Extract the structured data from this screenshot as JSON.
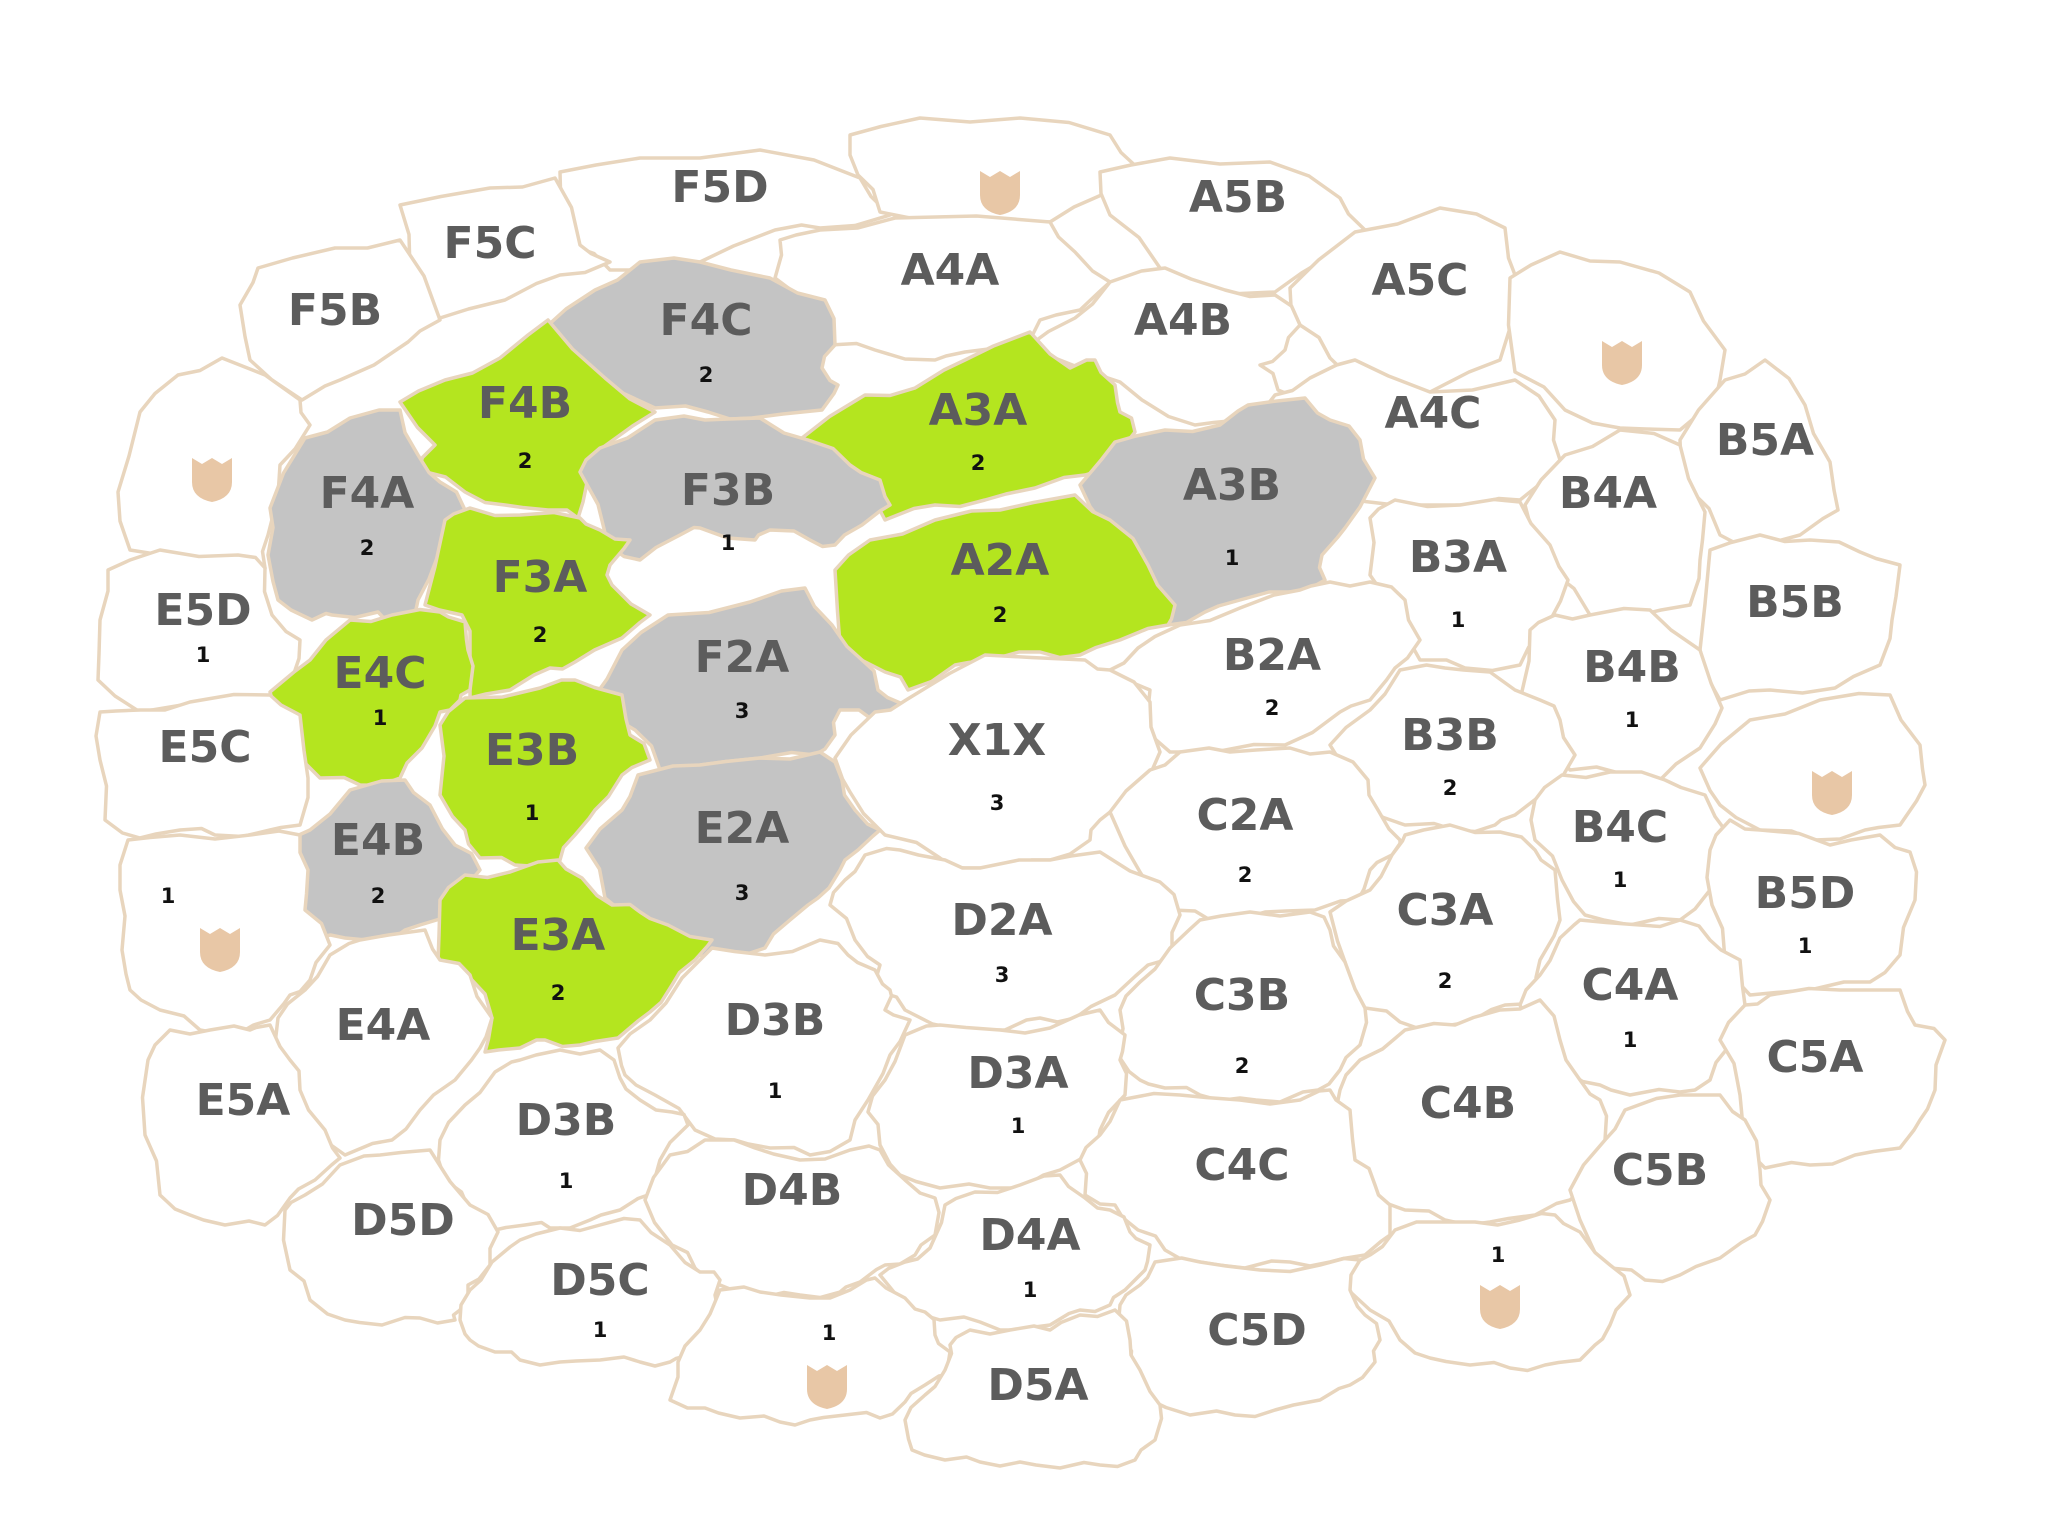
{
  "colors": {
    "background": "#ffffff",
    "border": "#e8d5bd",
    "white_region": "#ffffff",
    "gray_region": "#c4c4c4",
    "green_region": "#b4e51f",
    "label": "#5c5c5c",
    "number": "#111111",
    "shield": "#e8c7a6"
  },
  "regions": [
    {
      "id": "F5D",
      "label": "F5D",
      "count": "",
      "state": "white",
      "shield": false
    },
    {
      "id": "shield-top",
      "label": "",
      "count": "",
      "state": "white",
      "shield": true
    },
    {
      "id": "A5B",
      "label": "A5B",
      "count": "",
      "state": "white",
      "shield": false
    },
    {
      "id": "F5C",
      "label": "F5C",
      "count": "",
      "state": "white",
      "shield": false
    },
    {
      "id": "F5B",
      "label": "F5B",
      "count": "",
      "state": "white",
      "shield": false
    },
    {
      "id": "A4A",
      "label": "A4A",
      "count": "",
      "state": "white",
      "shield": false
    },
    {
      "id": "A5C",
      "label": "A5C",
      "count": "",
      "state": "white",
      "shield": false
    },
    {
      "id": "shield-ne",
      "label": "",
      "count": "",
      "state": "white",
      "shield": true
    },
    {
      "id": "F4C",
      "label": "F4C",
      "count": "2",
      "state": "gray",
      "shield": false
    },
    {
      "id": "A4B",
      "label": "A4B",
      "count": "",
      "state": "white",
      "shield": false
    },
    {
      "id": "shield-w",
      "label": "",
      "count": "",
      "state": "white",
      "shield": true
    },
    {
      "id": "F4B",
      "label": "F4B",
      "count": "2",
      "state": "green",
      "shield": false
    },
    {
      "id": "A3A",
      "label": "A3A",
      "count": "2",
      "state": "green",
      "shield": false
    },
    {
      "id": "A4C",
      "label": "A4C",
      "count": "",
      "state": "white",
      "shield": false
    },
    {
      "id": "B5A",
      "label": "B5A",
      "count": "",
      "state": "white",
      "shield": false
    },
    {
      "id": "F4A",
      "label": "F4A",
      "count": "2",
      "state": "gray",
      "shield": false
    },
    {
      "id": "F3B",
      "label": "F3B",
      "count": "1",
      "state": "gray",
      "shield": false
    },
    {
      "id": "A3B",
      "label": "A3B",
      "count": "1",
      "state": "gray",
      "shield": false
    },
    {
      "id": "B4A",
      "label": "B4A",
      "count": "",
      "state": "white",
      "shield": false
    },
    {
      "id": "F3A",
      "label": "F3A",
      "count": "2",
      "state": "green",
      "shield": false
    },
    {
      "id": "A2A",
      "label": "A2A",
      "count": "2",
      "state": "green",
      "shield": false
    },
    {
      "id": "B3A",
      "label": "B3A",
      "count": "1",
      "state": "white",
      "shield": false
    },
    {
      "id": "E5D",
      "label": "E5D",
      "count": "1",
      "state": "white",
      "shield": false
    },
    {
      "id": "B5B",
      "label": "B5B",
      "count": "",
      "state": "white",
      "shield": false
    },
    {
      "id": "E4C",
      "label": "E4C",
      "count": "1",
      "state": "green",
      "shield": false
    },
    {
      "id": "F2A",
      "label": "F2A",
      "count": "3",
      "state": "gray",
      "shield": false
    },
    {
      "id": "B2A",
      "label": "B2A",
      "count": "2",
      "state": "white",
      "shield": false
    },
    {
      "id": "B4B",
      "label": "B4B",
      "count": "1",
      "state": "white",
      "shield": false
    },
    {
      "id": "E5C",
      "label": "E5C",
      "count": "",
      "state": "white",
      "shield": false
    },
    {
      "id": "E3B",
      "label": "E3B",
      "count": "1",
      "state": "green",
      "shield": false
    },
    {
      "id": "X1X",
      "label": "X1X",
      "count": "3",
      "state": "white",
      "shield": false
    },
    {
      "id": "B3B",
      "label": "B3B",
      "count": "2",
      "state": "white",
      "shield": false
    },
    {
      "id": "shield-e",
      "label": "",
      "count": "",
      "state": "white",
      "shield": true
    },
    {
      "id": "E2A",
      "label": "E2A",
      "count": "3",
      "state": "gray",
      "shield": false
    },
    {
      "id": "C2A",
      "label": "C2A",
      "count": "2",
      "state": "white",
      "shield": false
    },
    {
      "id": "B4C",
      "label": "B4C",
      "count": "1",
      "state": "white",
      "shield": false
    },
    {
      "id": "E4B",
      "label": "E4B",
      "count": "2",
      "state": "gray",
      "shield": false
    },
    {
      "id": "shield-sw",
      "label": "",
      "count": "1",
      "state": "white",
      "shield": true
    },
    {
      "id": "B5D",
      "label": "B5D",
      "count": "1",
      "state": "white",
      "shield": false
    },
    {
      "id": "C3A",
      "label": "C3A",
      "count": "2",
      "state": "white",
      "shield": false
    },
    {
      "id": "D2A",
      "label": "D2A",
      "count": "3",
      "state": "white",
      "shield": false
    },
    {
      "id": "E3A",
      "label": "E3A",
      "count": "2",
      "state": "green",
      "shield": false
    },
    {
      "id": "C4A",
      "label": "C4A",
      "count": "1",
      "state": "white",
      "shield": false
    },
    {
      "id": "C3B",
      "label": "C3B",
      "count": "2",
      "state": "white",
      "shield": false
    },
    {
      "id": "E4A",
      "label": "E4A",
      "count": "",
      "state": "white",
      "shield": false
    },
    {
      "id": "D3B-upper",
      "label": "D3B",
      "count": "1",
      "state": "white",
      "shield": false
    },
    {
      "id": "C5A",
      "label": "C5A",
      "count": "",
      "state": "white",
      "shield": false
    },
    {
      "id": "D3A",
      "label": "D3A",
      "count": "1",
      "state": "white",
      "shield": false
    },
    {
      "id": "E5A",
      "label": "E5A",
      "count": "",
      "state": "white",
      "shield": false
    },
    {
      "id": "C4B",
      "label": "C4B",
      "count": "",
      "state": "white",
      "shield": false
    },
    {
      "id": "D3B-lower",
      "label": "D3B",
      "count": "1",
      "state": "white",
      "shield": false
    },
    {
      "id": "C4C",
      "label": "C4C",
      "count": "",
      "state": "white",
      "shield": false
    },
    {
      "id": "C5B",
      "label": "C5B",
      "count": "",
      "state": "white",
      "shield": false
    },
    {
      "id": "D4B",
      "label": "D4B",
      "count": "",
      "state": "white",
      "shield": false
    },
    {
      "id": "D5D",
      "label": "D5D",
      "count": "",
      "state": "white",
      "shield": false
    },
    {
      "id": "D4A",
      "label": "D4A",
      "count": "1",
      "state": "white",
      "shield": false
    },
    {
      "id": "shield-se",
      "label": "",
      "count": "1",
      "state": "white",
      "shield": true
    },
    {
      "id": "D5C",
      "label": "D5C",
      "count": "1",
      "state": "white",
      "shield": false
    },
    {
      "id": "C5D",
      "label": "C5D",
      "count": "",
      "state": "white",
      "shield": false
    },
    {
      "id": "shield-s",
      "label": "",
      "count": "1",
      "state": "white",
      "shield": true
    },
    {
      "id": "D5A",
      "label": "D5A",
      "count": "",
      "state": "white",
      "shield": false
    }
  ]
}
